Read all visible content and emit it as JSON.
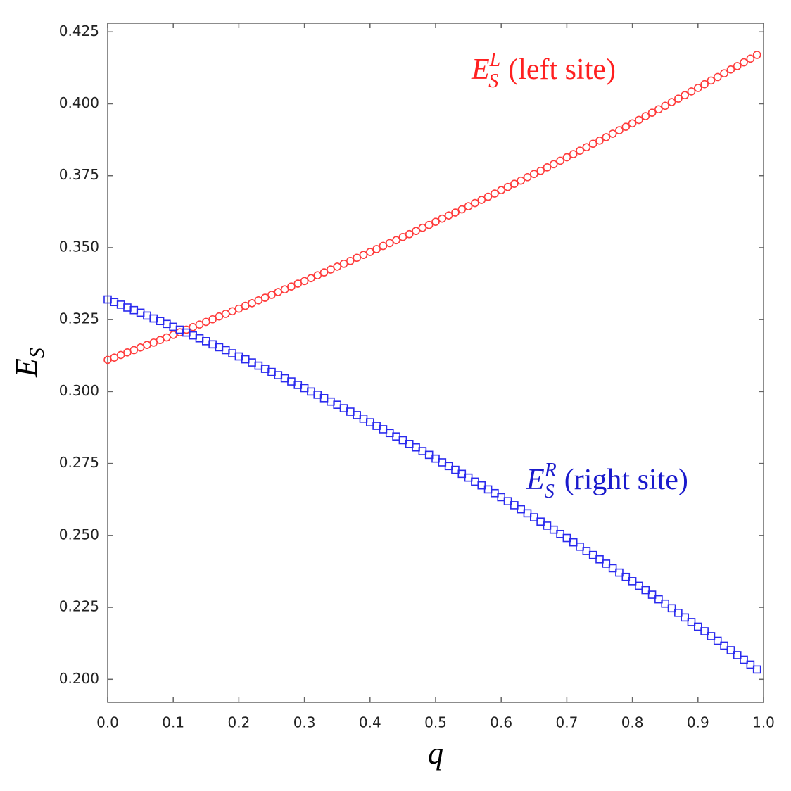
{
  "chart_data": {
    "type": "scatter",
    "x_label": "q",
    "y_label": {
      "symbol": "E",
      "sub": "S"
    },
    "xlim": [
      0,
      1
    ],
    "ylim": [
      0.192,
      0.428
    ],
    "xticks": [
      {
        "value": 0,
        "label": "0.0"
      },
      0.1,
      0.2,
      0.3,
      0.4,
      0.5,
      0.6,
      0.7,
      0.8,
      0.9,
      {
        "value": 1,
        "label": "1.0"
      }
    ],
    "yticks": [
      {
        "value": 0.2,
        "label": "0.200"
      },
      0.225,
      {
        "value": 0.25,
        "label": "0.250"
      },
      0.275,
      {
        "value": 0.3,
        "label": "0.300"
      },
      0.325,
      {
        "value": 0.35,
        "label": "0.350"
      },
      0.375,
      {
        "value": 0.4,
        "label": "0.400"
      },
      0.425
    ],
    "x": [
      0,
      0.01,
      0.02,
      0.03,
      0.04,
      0.05,
      0.06,
      0.07,
      0.08,
      0.09,
      0.1,
      0.11,
      0.12,
      0.13,
      0.14,
      0.15,
      0.16,
      0.17,
      0.18,
      0.19,
      0.2,
      0.21,
      0.22,
      0.23,
      0.24,
      0.25,
      0.26,
      0.27,
      0.28,
      0.29,
      0.3,
      0.31,
      0.32,
      0.33,
      0.34,
      0.35,
      0.36,
      0.37,
      0.38,
      0.39,
      0.4,
      0.41,
      0.42,
      0.43,
      0.44,
      0.45,
      0.46,
      0.47,
      0.48,
      0.49,
      0.5,
      0.51,
      0.52,
      0.53,
      0.54,
      0.55,
      0.56,
      0.57,
      0.58,
      0.59,
      0.6,
      0.61,
      0.62,
      0.63,
      0.64,
      0.65,
      0.66,
      0.67,
      0.68,
      0.69,
      0.7,
      0.71,
      0.72,
      0.73,
      0.74,
      0.75,
      0.76,
      0.77,
      0.78,
      0.79,
      0.8,
      0.81,
      0.82,
      0.83,
      0.84,
      0.85,
      0.86,
      0.87,
      0.88,
      0.89,
      0.9,
      0.91,
      0.92,
      0.93,
      0.94,
      0.95,
      0.96,
      0.97,
      0.98,
      0.99
    ],
    "series": [
      {
        "marker": "circle",
        "color": "#ff3b3b",
        "values": [
          0.311,
          0.3118,
          0.3127,
          0.3136,
          0.3144,
          0.3153,
          0.3162,
          0.317,
          0.3179,
          0.3188,
          0.3197,
          0.3206,
          0.3215,
          0.3224,
          0.3233,
          0.3242,
          0.3251,
          0.3261,
          0.327,
          0.3279,
          0.3288,
          0.3298,
          0.3307,
          0.3317,
          0.3326,
          0.3336,
          0.3346,
          0.3355,
          0.3365,
          0.3375,
          0.3384,
          0.3394,
          0.3404,
          0.3414,
          0.3424,
          0.3434,
          0.3444,
          0.3454,
          0.3465,
          0.3475,
          0.3485,
          0.3495,
          0.3506,
          0.3516,
          0.3526,
          0.3537,
          0.3547,
          0.3558,
          0.3569,
          0.3579,
          0.359,
          0.3601,
          0.3612,
          0.3622,
          0.3633,
          0.3644,
          0.3655,
          0.3666,
          0.3677,
          0.3688,
          0.37,
          0.3711,
          0.3722,
          0.3733,
          0.3745,
          0.3756,
          0.3767,
          0.3779,
          0.379,
          0.3802,
          0.3814,
          0.3825,
          0.3837,
          0.3849,
          0.3861,
          0.3872,
          0.3884,
          0.3896,
          0.3908,
          0.392,
          0.3932,
          0.3944,
          0.3957,
          0.3969,
          0.3981,
          0.3993,
          0.4006,
          0.4018,
          0.403,
          0.4043,
          0.4055,
          0.4068,
          0.4081,
          0.4093,
          0.4106,
          0.4119,
          0.4131,
          0.4144,
          0.4157,
          0.417
        ]
      },
      {
        "marker": "square",
        "color": "#2a2aee",
        "values": [
          0.332,
          0.3311,
          0.3302,
          0.3292,
          0.3283,
          0.3274,
          0.3264,
          0.3254,
          0.3245,
          0.3235,
          0.3225,
          0.3215,
          0.3205,
          0.3195,
          0.3185,
          0.3175,
          0.3164,
          0.3154,
          0.3144,
          0.3133,
          0.3122,
          0.3112,
          0.3101,
          0.309,
          0.3079,
          0.3068,
          0.3057,
          0.3046,
          0.3035,
          0.3023,
          0.3012,
          0.3,
          0.2989,
          0.2977,
          0.2965,
          0.2954,
          0.2942,
          0.293,
          0.2918,
          0.2906,
          0.2893,
          0.2881,
          0.2869,
          0.2856,
          0.2844,
          0.2831,
          0.2818,
          0.2806,
          0.2793,
          0.278,
          0.2767,
          0.2754,
          0.2741,
          0.2728,
          0.2714,
          0.2701,
          0.2687,
          0.2674,
          0.266,
          0.2647,
          0.2633,
          0.2619,
          0.2605,
          0.2591,
          0.2577,
          0.2563,
          0.2548,
          0.2534,
          0.252,
          0.2505,
          0.2491,
          0.2476,
          0.2461,
          0.2446,
          0.2432,
          0.2417,
          0.2402,
          0.2386,
          0.2371,
          0.2356,
          0.2341,
          0.2325,
          0.231,
          0.2294,
          0.2278,
          0.2263,
          0.2247,
          0.2231,
          0.2215,
          0.2199,
          0.2183,
          0.2167,
          0.215,
          0.2134,
          0.2117,
          0.2101,
          0.2084,
          0.2068,
          0.2051,
          0.2034
        ]
      }
    ],
    "annotations": [
      {
        "symbol": "E",
        "sub": "S",
        "sup": "L",
        "text": "(left site)",
        "color": "#ff2020"
      },
      {
        "symbol": "E",
        "sub": "S",
        "sup": "R",
        "text": "(right site)",
        "color": "#1a1acc"
      }
    ]
  }
}
